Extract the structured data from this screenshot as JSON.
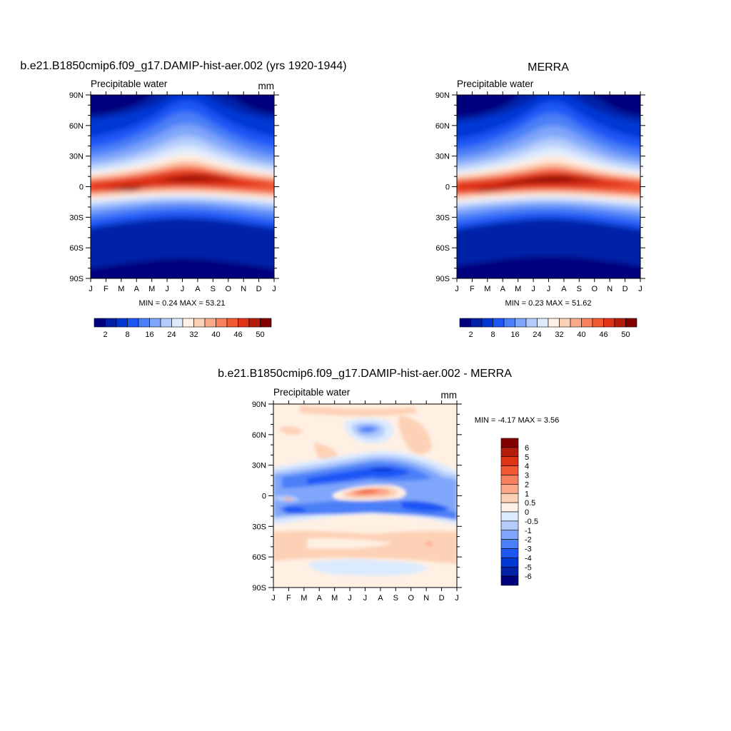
{
  "panels": [
    {
      "id": "model",
      "title": "b.e21.B1850cmip6.f09_g17.DAMIP-hist-aer.002 (yrs 1920-1944)",
      "subtitle": "Precipitable water",
      "units": "mm",
      "stats": "MIN =   0.24 MAX =  53.21"
    },
    {
      "id": "obs",
      "title": "MERRA",
      "subtitle": "Precipitable water",
      "units": "",
      "stats": "MIN =   0.23 MAX =  51.62"
    },
    {
      "id": "diff",
      "title": "b.e21.B1850cmip6.f09_g17.DAMIP-hist-aer.002 - MERRA",
      "subtitle": "Precipitable water",
      "units": "mm",
      "stats": "MIN =  -4.17 MAX =   3.56"
    }
  ],
  "chart_data": [
    {
      "type": "heatmap",
      "panel": "model",
      "title": "b.e21.B1850cmip6.f09_g17.DAMIP-hist-aer.002 (yrs 1920-1944)",
      "subtitle": "Precipitable water",
      "units": "mm",
      "x_ticks": [
        "J",
        "F",
        "M",
        "A",
        "M",
        "J",
        "J",
        "A",
        "S",
        "O",
        "N",
        "D",
        "J"
      ],
      "y_ticks": [
        "90N",
        "60N",
        "30N",
        "0",
        "30S",
        "60S",
        "90S"
      ],
      "y_values": [
        90,
        60,
        30,
        0,
        -30,
        -60,
        -90
      ],
      "colorbar": {
        "ticks": [
          "2",
          "8",
          "16",
          "24",
          "32",
          "40",
          "46",
          "50"
        ],
        "colors": [
          "#00007d",
          "#0020a8",
          "#0038d4",
          "#1e56f5",
          "#4b7ff7",
          "#7fa6fa",
          "#b3ccfc",
          "#dceafe",
          "#fff0e4",
          "#fdd1b6",
          "#fba989",
          "#f7805f",
          "#f25935",
          "#e03316",
          "#b41d0a",
          "#820000"
        ]
      },
      "min": 0.24,
      "max": 53.21
    },
    {
      "type": "heatmap",
      "panel": "obs",
      "title": "MERRA",
      "subtitle": "Precipitable water",
      "x_ticks": [
        "J",
        "F",
        "M",
        "A",
        "M",
        "J",
        "J",
        "A",
        "S",
        "O",
        "N",
        "D",
        "J"
      ],
      "y_ticks": [
        "90N",
        "60N",
        "30N",
        "0",
        "30S",
        "60S",
        "90S"
      ],
      "y_values": [
        90,
        60,
        30,
        0,
        -30,
        -60,
        -90
      ],
      "colorbar": {
        "ticks": [
          "2",
          "8",
          "16",
          "24",
          "32",
          "40",
          "46",
          "50"
        ],
        "colors": [
          "#00007d",
          "#0020a8",
          "#0038d4",
          "#1e56f5",
          "#4b7ff7",
          "#7fa6fa",
          "#b3ccfc",
          "#dceafe",
          "#fff0e4",
          "#fdd1b6",
          "#fba989",
          "#f7805f",
          "#f25935",
          "#e03316",
          "#b41d0a",
          "#820000"
        ]
      },
      "min": 0.23,
      "max": 51.62
    },
    {
      "type": "heatmap",
      "panel": "diff",
      "title": "b.e21.B1850cmip6.f09_g17.DAMIP-hist-aer.002 - MERRA",
      "subtitle": "Precipitable water",
      "units": "mm",
      "x_ticks": [
        "J",
        "F",
        "M",
        "A",
        "M",
        "J",
        "J",
        "A",
        "S",
        "O",
        "N",
        "D",
        "J"
      ],
      "y_ticks": [
        "90N",
        "60N",
        "30N",
        "0",
        "30S",
        "60S",
        "90S"
      ],
      "y_values": [
        90,
        60,
        30,
        0,
        -30,
        -60,
        -90
      ],
      "colorbar": {
        "ticks": [
          "6",
          "5",
          "4",
          "3",
          "2",
          "1",
          "0.5",
          "0",
          "-0.5",
          "-1",
          "-2",
          "-3",
          "-4",
          "-5",
          "-6"
        ],
        "colors": [
          "#820000",
          "#b41d0a",
          "#e03316",
          "#f25935",
          "#f7805f",
          "#fba989",
          "#fdd1b6",
          "#fff0e4",
          "#dceafe",
          "#b3ccfc",
          "#7fa6fa",
          "#4b7ff7",
          "#1e56f5",
          "#0038d4",
          "#0020a8",
          "#00007d"
        ]
      },
      "min": -4.17,
      "max": 3.56
    }
  ]
}
